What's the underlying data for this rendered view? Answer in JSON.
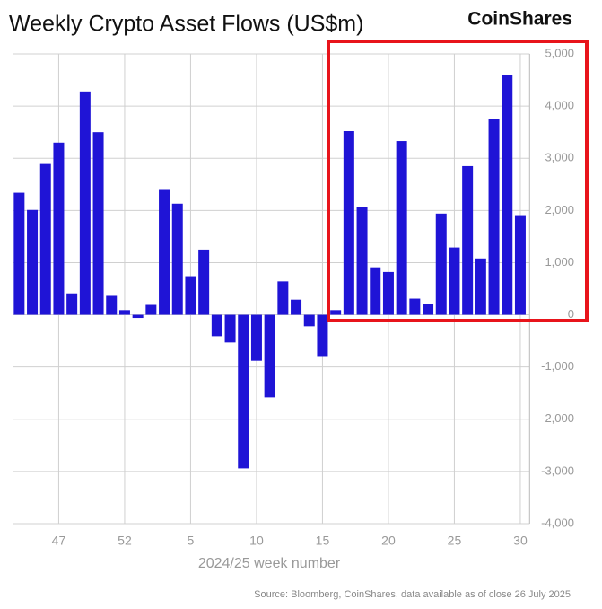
{
  "chart_data": {
    "type": "bar",
    "title": "Weekly Crypto Asset Flows (US$m)",
    "brand": "CoinShares",
    "x_label": "2024/25 week number",
    "source": "Source: Bloomberg, CoinShares, data available as of close 26 July 2025",
    "categories": [
      null,
      null,
      null,
      "47",
      null,
      null,
      null,
      null,
      "52",
      null,
      null,
      null,
      null,
      "5",
      null,
      null,
      null,
      null,
      "10",
      null,
      null,
      null,
      null,
      "15",
      null,
      null,
      null,
      null,
      "20",
      null,
      null,
      null,
      null,
      "25",
      null,
      null,
      null,
      null,
      "30"
    ],
    "values": [
      2340,
      2010,
      2890,
      3300,
      410,
      4280,
      3500,
      380,
      90,
      -60,
      190,
      2410,
      2130,
      740,
      1250,
      -410,
      -530,
      -2940,
      -880,
      -1580,
      640,
      290,
      -220,
      -790,
      90,
      3520,
      2060,
      910,
      820,
      3330,
      310,
      210,
      1940,
      1290,
      2850,
      1080,
      3750,
      4600,
      1910
    ],
    "color": "#1f14d6",
    "ylim": [
      -4000,
      5000
    ],
    "yticks": [
      {
        "value": -4000,
        "label": "-4,000"
      },
      {
        "value": -3000,
        "label": "-3,000"
      },
      {
        "value": -2000,
        "label": "-2,000"
      },
      {
        "value": -1000,
        "label": "-1,000"
      },
      0,
      {
        "value": 1000,
        "label": "1,000"
      },
      {
        "value": 2000,
        "label": "2,000"
      },
      {
        "value": 3000,
        "label": "3,000"
      },
      {
        "value": 4000,
        "label": "4,000"
      },
      {
        "value": 5000,
        "label": "5,000"
      }
    ],
    "grid": true
  }
}
